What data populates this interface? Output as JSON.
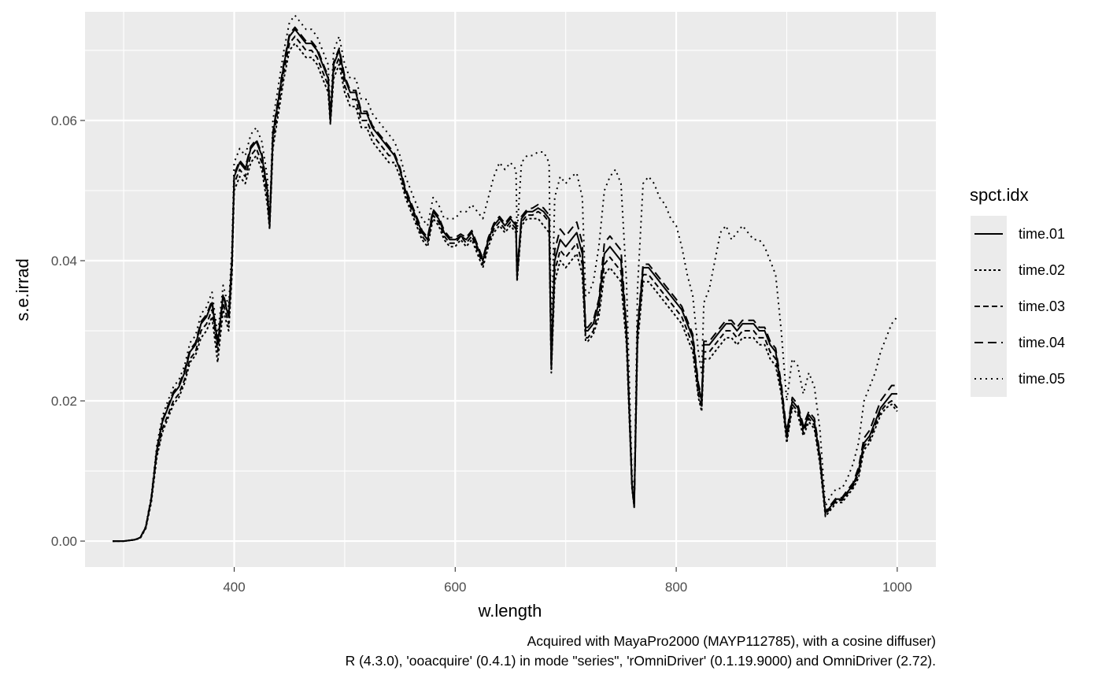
{
  "chart_data": {
    "type": "line",
    "xlabel": "w.length",
    "ylabel": "s.e.irrad",
    "xlim": [
      265,
      1035
    ],
    "ylim": [
      -0.0037,
      0.0755
    ],
    "xticks": [
      400,
      600,
      800,
      1000
    ],
    "xtick_labels": [
      "400",
      "600",
      "800",
      "1000"
    ],
    "yticks": [
      0.0,
      0.02,
      0.04,
      0.06
    ],
    "ytick_labels": [
      "0.00",
      "0.02",
      "0.04",
      "0.06"
    ],
    "grid": true,
    "legend": {
      "title": "spct.idx",
      "position": "right"
    },
    "caption": [
      "Acquired with MayaPro2000 (MAYP112785), with a cosine diffuser)",
      "R (4.3.0), 'ooacquire' (0.4.1) in mode \"series\", 'rOmniDriver' (0.1.19.9000) and OmniDriver (2.72)."
    ],
    "x": [
      290,
      300,
      310,
      315,
      320,
      325,
      330,
      335,
      340,
      345,
      350,
      355,
      360,
      365,
      370,
      375,
      380,
      385,
      390,
      395,
      398,
      400,
      405,
      410,
      415,
      420,
      425,
      430,
      432,
      435,
      440,
      445,
      450,
      455,
      460,
      465,
      470,
      475,
      480,
      485,
      487,
      490,
      495,
      500,
      505,
      510,
      515,
      520,
      525,
      530,
      535,
      540,
      545,
      550,
      555,
      560,
      565,
      570,
      575,
      580,
      585,
      590,
      595,
      600,
      605,
      610,
      615,
      620,
      625,
      630,
      635,
      640,
      645,
      650,
      655,
      656,
      660,
      665,
      670,
      675,
      680,
      685,
      687,
      690,
      695,
      700,
      705,
      710,
      715,
      718,
      720,
      725,
      730,
      735,
      740,
      745,
      750,
      755,
      760,
      762,
      765,
      770,
      775,
      780,
      785,
      790,
      795,
      800,
      805,
      810,
      815,
      820,
      823,
      825,
      830,
      835,
      840,
      845,
      850,
      855,
      860,
      865,
      870,
      875,
      880,
      885,
      890,
      895,
      900,
      905,
      910,
      915,
      920,
      925,
      930,
      935,
      940,
      945,
      950,
      955,
      960,
      965,
      970,
      975,
      980,
      985,
      990,
      995,
      1000
    ],
    "series": [
      {
        "name": "time.01",
        "dash": "",
        "values": [
          0.0,
          0.0,
          0.0002,
          0.0005,
          0.002,
          0.006,
          0.013,
          0.017,
          0.019,
          0.021,
          0.022,
          0.024,
          0.027,
          0.028,
          0.031,
          0.032,
          0.034,
          0.028,
          0.035,
          0.032,
          0.04,
          0.052,
          0.054,
          0.053,
          0.056,
          0.057,
          0.055,
          0.05,
          0.045,
          0.058,
          0.063,
          0.068,
          0.072,
          0.073,
          0.072,
          0.071,
          0.071,
          0.07,
          0.068,
          0.066,
          0.06,
          0.068,
          0.07,
          0.066,
          0.064,
          0.064,
          0.061,
          0.061,
          0.059,
          0.058,
          0.057,
          0.056,
          0.055,
          0.053,
          0.05,
          0.048,
          0.046,
          0.044,
          0.043,
          0.047,
          0.046,
          0.044,
          0.043,
          0.043,
          0.0435,
          0.043,
          0.044,
          0.042,
          0.04,
          0.043,
          0.045,
          0.046,
          0.045,
          0.046,
          0.045,
          0.038,
          0.046,
          0.047,
          0.047,
          0.0475,
          0.047,
          0.046,
          0.025,
          0.04,
          0.043,
          0.042,
          0.043,
          0.044,
          0.041,
          0.03,
          0.03,
          0.031,
          0.034,
          0.041,
          0.042,
          0.041,
          0.04,
          0.03,
          0.008,
          0.005,
          0.03,
          0.039,
          0.039,
          0.038,
          0.037,
          0.036,
          0.035,
          0.034,
          0.033,
          0.031,
          0.029,
          0.022,
          0.02,
          0.028,
          0.028,
          0.029,
          0.03,
          0.031,
          0.031,
          0.03,
          0.031,
          0.031,
          0.031,
          0.03,
          0.03,
          0.028,
          0.027,
          0.022,
          0.015,
          0.02,
          0.019,
          0.016,
          0.018,
          0.017,
          0.012,
          0.004,
          0.005,
          0.006,
          0.006,
          0.007,
          0.008,
          0.01,
          0.014,
          0.015,
          0.017,
          0.019,
          0.02,
          0.021,
          0.021
        ]
      },
      {
        "name": "time.02",
        "dash": "3,3",
        "values": [
          0.0,
          0.0,
          0.0002,
          0.0004,
          0.0018,
          0.0055,
          0.012,
          0.0155,
          0.0175,
          0.0195,
          0.0205,
          0.0225,
          0.0255,
          0.0265,
          0.029,
          0.03,
          0.032,
          0.0255,
          0.033,
          0.03,
          0.038,
          0.05,
          0.052,
          0.051,
          0.054,
          0.055,
          0.053,
          0.048,
          0.0445,
          0.056,
          0.061,
          0.066,
          0.07,
          0.071,
          0.07,
          0.069,
          0.069,
          0.068,
          0.066,
          0.064,
          0.0595,
          0.066,
          0.068,
          0.064,
          0.062,
          0.062,
          0.059,
          0.059,
          0.057,
          0.056,
          0.055,
          0.054,
          0.054,
          0.052,
          0.049,
          0.047,
          0.045,
          0.043,
          0.042,
          0.046,
          0.045,
          0.043,
          0.042,
          0.042,
          0.043,
          0.042,
          0.043,
          0.041,
          0.039,
          0.042,
          0.044,
          0.045,
          0.044,
          0.045,
          0.044,
          0.037,
          0.045,
          0.046,
          0.046,
          0.046,
          0.045,
          0.044,
          0.024,
          0.037,
          0.04,
          0.039,
          0.04,
          0.041,
          0.038,
          0.0285,
          0.0285,
          0.0295,
          0.032,
          0.038,
          0.039,
          0.038,
          0.037,
          0.028,
          0.0075,
          0.0048,
          0.028,
          0.037,
          0.037,
          0.036,
          0.035,
          0.034,
          0.033,
          0.032,
          0.031,
          0.029,
          0.027,
          0.0205,
          0.0185,
          0.026,
          0.026,
          0.027,
          0.028,
          0.029,
          0.029,
          0.028,
          0.029,
          0.029,
          0.029,
          0.028,
          0.028,
          0.026,
          0.025,
          0.021,
          0.014,
          0.019,
          0.018,
          0.015,
          0.017,
          0.016,
          0.011,
          0.0035,
          0.0045,
          0.0055,
          0.0055,
          0.0065,
          0.0075,
          0.009,
          0.013,
          0.014,
          0.016,
          0.018,
          0.019,
          0.0195,
          0.0185
        ]
      },
      {
        "name": "time.03",
        "dash": "7,4",
        "values": [
          0.0,
          0.0,
          0.0002,
          0.0005,
          0.0019,
          0.006,
          0.0125,
          0.016,
          0.018,
          0.02,
          0.021,
          0.023,
          0.026,
          0.027,
          0.03,
          0.031,
          0.033,
          0.027,
          0.034,
          0.031,
          0.039,
          0.051,
          0.053,
          0.052,
          0.055,
          0.056,
          0.054,
          0.049,
          0.0447,
          0.057,
          0.062,
          0.067,
          0.071,
          0.072,
          0.071,
          0.07,
          0.07,
          0.069,
          0.067,
          0.065,
          0.0597,
          0.067,
          0.069,
          0.065,
          0.063,
          0.063,
          0.06,
          0.06,
          0.058,
          0.057,
          0.056,
          0.055,
          0.055,
          0.053,
          0.0495,
          0.0475,
          0.0455,
          0.0435,
          0.0425,
          0.0465,
          0.0455,
          0.0435,
          0.0425,
          0.0425,
          0.0435,
          0.0425,
          0.0435,
          0.0415,
          0.0395,
          0.0425,
          0.0445,
          0.0455,
          0.0445,
          0.0455,
          0.0445,
          0.0375,
          0.0455,
          0.0465,
          0.0465,
          0.047,
          0.0465,
          0.0455,
          0.0245,
          0.0385,
          0.0415,
          0.0405,
          0.0415,
          0.0425,
          0.0395,
          0.029,
          0.029,
          0.03,
          0.033,
          0.0395,
          0.0405,
          0.0395,
          0.0385,
          0.029,
          0.0078,
          0.0049,
          0.029,
          0.038,
          0.038,
          0.037,
          0.036,
          0.035,
          0.034,
          0.033,
          0.032,
          0.03,
          0.028,
          0.021,
          0.019,
          0.027,
          0.027,
          0.028,
          0.029,
          0.03,
          0.03,
          0.029,
          0.03,
          0.03,
          0.03,
          0.029,
          0.029,
          0.027,
          0.026,
          0.0215,
          0.0145,
          0.0195,
          0.0185,
          0.0155,
          0.0175,
          0.0165,
          0.0115,
          0.0038,
          0.0048,
          0.0058,
          0.0058,
          0.0068,
          0.0078,
          0.0095,
          0.0135,
          0.0145,
          0.0165,
          0.0185,
          0.0195,
          0.02,
          0.019
        ]
      },
      {
        "name": "time.04",
        "dash": "11,6",
        "values": [
          0.0,
          0.0,
          0.0002,
          0.0005,
          0.002,
          0.0062,
          0.0132,
          0.0172,
          0.0193,
          0.0213,
          0.0223,
          0.0243,
          0.0273,
          0.0283,
          0.0313,
          0.0323,
          0.0343,
          0.0283,
          0.0353,
          0.0323,
          0.0403,
          0.0523,
          0.0543,
          0.0533,
          0.0563,
          0.0573,
          0.0553,
          0.0503,
          0.0452,
          0.0583,
          0.0633,
          0.0683,
          0.0723,
          0.0733,
          0.0723,
          0.0713,
          0.0713,
          0.0703,
          0.0683,
          0.0663,
          0.0602,
          0.0683,
          0.0703,
          0.0663,
          0.0643,
          0.0643,
          0.0613,
          0.0613,
          0.0593,
          0.0583,
          0.0573,
          0.0563,
          0.0553,
          0.0533,
          0.0503,
          0.0483,
          0.0463,
          0.0443,
          0.0433,
          0.0473,
          0.0463,
          0.0443,
          0.0433,
          0.0433,
          0.0438,
          0.0433,
          0.0443,
          0.0423,
          0.0403,
          0.0433,
          0.0453,
          0.0463,
          0.0453,
          0.0463,
          0.0453,
          0.0383,
          0.0463,
          0.0473,
          0.0475,
          0.048,
          0.0475,
          0.0465,
          0.0252,
          0.0415,
          0.0445,
          0.0435,
          0.0445,
          0.0455,
          0.0425,
          0.0305,
          0.0305,
          0.0315,
          0.0345,
          0.0425,
          0.0435,
          0.0425,
          0.0415,
          0.0305,
          0.0082,
          0.0051,
          0.0305,
          0.0395,
          0.0395,
          0.0385,
          0.0375,
          0.0365,
          0.0355,
          0.0345,
          0.0335,
          0.0315,
          0.0295,
          0.0225,
          0.0205,
          0.0285,
          0.0285,
          0.0295,
          0.0305,
          0.0315,
          0.0315,
          0.0305,
          0.0315,
          0.0315,
          0.0315,
          0.0305,
          0.0305,
          0.0285,
          0.0275,
          0.0225,
          0.0155,
          0.0205,
          0.0195,
          0.0165,
          0.0185,
          0.0175,
          0.0125,
          0.0042,
          0.0052,
          0.0062,
          0.0062,
          0.0073,
          0.0083,
          0.0105,
          0.0147,
          0.0158,
          0.0179,
          0.02,
          0.0211,
          0.0222,
          0.0222
        ]
      },
      {
        "name": "time.05",
        "dash": "2,5",
        "values": [
          0.0,
          0.0,
          0.0002,
          0.0005,
          0.0021,
          0.0064,
          0.0137,
          0.0178,
          0.02,
          0.022,
          0.023,
          0.025,
          0.0283,
          0.0293,
          0.0324,
          0.0334,
          0.0355,
          0.0293,
          0.0365,
          0.0334,
          0.0418,
          0.054,
          0.056,
          0.055,
          0.058,
          0.059,
          0.057,
          0.052,
          0.0455,
          0.06,
          0.065,
          0.07,
          0.074,
          0.075,
          0.074,
          0.073,
          0.073,
          0.072,
          0.07,
          0.068,
          0.061,
          0.07,
          0.072,
          0.068,
          0.066,
          0.066,
          0.063,
          0.063,
          0.061,
          0.06,
          0.059,
          0.058,
          0.057,
          0.055,
          0.052,
          0.05,
          0.048,
          0.046,
          0.045,
          0.049,
          0.048,
          0.046,
          0.046,
          0.046,
          0.047,
          0.047,
          0.048,
          0.047,
          0.046,
          0.049,
          0.052,
          0.054,
          0.053,
          0.054,
          0.053,
          0.044,
          0.054,
          0.055,
          0.055,
          0.0555,
          0.0555,
          0.054,
          0.028,
          0.049,
          0.052,
          0.051,
          0.052,
          0.0525,
          0.049,
          0.035,
          0.035,
          0.037,
          0.042,
          0.05,
          0.052,
          0.053,
          0.051,
          0.037,
          0.0095,
          0.0058,
          0.036,
          0.051,
          0.052,
          0.051,
          0.049,
          0.048,
          0.046,
          0.045,
          0.042,
          0.038,
          0.035,
          0.027,
          0.024,
          0.034,
          0.036,
          0.04,
          0.044,
          0.045,
          0.043,
          0.044,
          0.045,
          0.044,
          0.043,
          0.043,
          0.042,
          0.04,
          0.038,
          0.03,
          0.02,
          0.026,
          0.025,
          0.021,
          0.024,
          0.022,
          0.016,
          0.005,
          0.0065,
          0.0075,
          0.0075,
          0.009,
          0.011,
          0.014,
          0.02,
          0.022,
          0.024,
          0.027,
          0.029,
          0.031,
          0.032
        ]
      }
    ]
  }
}
